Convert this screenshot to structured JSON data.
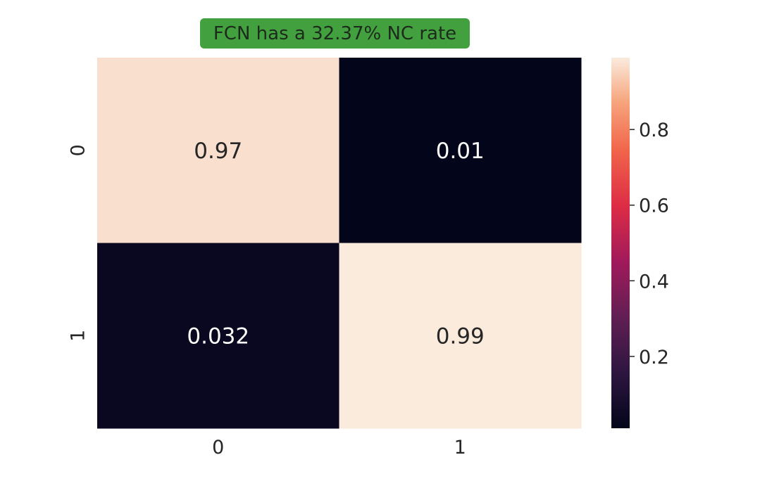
{
  "chart_data": {
    "type": "heatmap",
    "title": "FCN has a 32.37% NC rate",
    "title_background": "#43a03f",
    "x_categories": [
      "0",
      "1"
    ],
    "y_categories": [
      "0",
      "1"
    ],
    "values": [
      [
        0.97,
        0.01
      ],
      [
        0.032,
        0.99
      ]
    ],
    "cell_labels": [
      [
        "0.97",
        "0.01"
      ],
      [
        "0.032",
        "0.99"
      ]
    ],
    "colormap": "rocket",
    "colorbar": {
      "vmin": 0.01,
      "vmax": 0.99,
      "ticks": [
        0.2,
        0.4,
        0.6,
        0.8
      ],
      "tick_labels": [
        "0.2",
        "0.4",
        "0.6",
        "0.8"
      ]
    }
  }
}
